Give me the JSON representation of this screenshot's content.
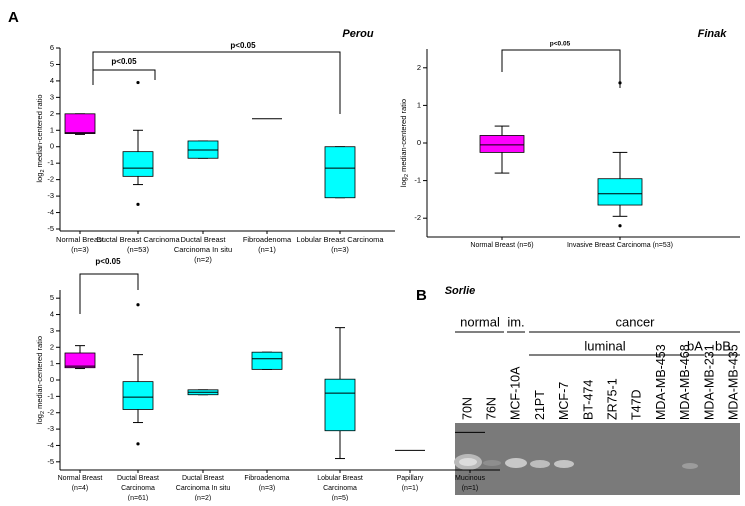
{
  "chart_data": [
    {
      "type": "box",
      "title": "Perou",
      "ylabel": {
        "base": "log",
        "sub": "2",
        "rest": " median-centered ratio"
      },
      "categories": [
        [
          "Normal Breast",
          "(n=3)"
        ],
        [
          "Ductal Breast Carcinoma",
          "(n=53)"
        ],
        [
          "Ductal Breast",
          "Carcinoma In situ",
          "(n=2)"
        ],
        [
          "Fibroadenoma",
          "(n=1)"
        ],
        [
          "Lobular Breast Carcinoma",
          "(n=3)"
        ]
      ],
      "colors": [
        "#ff00ff",
        "#00ffff",
        "#00ffff",
        "#00ffff",
        "#00ffff"
      ],
      "whisker_low": [
        0.75,
        -2.3,
        -0.7,
        null,
        -3.1
      ],
      "q1": [
        0.8,
        -1.8,
        -0.7,
        null,
        -3.1
      ],
      "median": [
        0.85,
        -1.3,
        -0.2,
        1.7,
        -1.3
      ],
      "q3": [
        2.0,
        -0.3,
        0.35,
        null,
        0.0
      ],
      "whisker_high": [
        2.0,
        1.0,
        0.35,
        null,
        0.0
      ],
      "outliers": [
        [],
        [
          3.9,
          -3.5
        ],
        [],
        [],
        []
      ],
      "ylim": [
        -5,
        6
      ],
      "yticks": [
        -5,
        -4,
        -3,
        -2,
        -1,
        0,
        1,
        2,
        3,
        4,
        5,
        6
      ],
      "annotations": [
        "p<0.05",
        "p<0.05"
      ]
    },
    {
      "type": "box",
      "title": "Finak",
      "ylabel": {
        "base": "log",
        "sub": "2",
        "rest": " median-centered ratio"
      },
      "categories": [
        [
          "Normal Breast (n=6)"
        ],
        [
          "Invasive Breast Carcinoma (n=53)"
        ]
      ],
      "colors": [
        "#ff00ff",
        "#00ffff"
      ],
      "whisker_low": [
        -0.8,
        -1.95
      ],
      "q1": [
        -0.25,
        -1.65
      ],
      "median": [
        -0.05,
        -1.35
      ],
      "q3": [
        0.2,
        -0.95
      ],
      "whisker_high": [
        0.45,
        -0.25
      ],
      "outliers": [
        [],
        [
          1.6,
          -2.2
        ]
      ],
      "ylim": [
        -2.5,
        2.5
      ],
      "yticks": [
        -2,
        -1,
        0,
        1,
        2
      ],
      "annotations": [
        "p<0.05"
      ]
    },
    {
      "type": "box",
      "title": "Sorlie",
      "ylabel": {
        "base": "log",
        "sub": "2",
        "rest": " median-centered ratio"
      },
      "categories": [
        [
          "Normal Breast",
          "(n=4)"
        ],
        [
          "Ductal Breast",
          "Carcinoma",
          "(n=61)"
        ],
        [
          "Ductal Breast",
          "Carcinoma In situ",
          "(n=2)"
        ],
        [
          "Fibroadenoma",
          "(n=3)"
        ],
        [
          "Lobular Breast",
          "Carcinoma",
          "(n=5)"
        ],
        [
          "Papillary",
          "(n=1)"
        ],
        [
          "Mucinous",
          "(n=1)"
        ]
      ],
      "colors": [
        "#ff00ff",
        "#00ffff",
        "#00ffff",
        "#00ffff",
        "#00ffff",
        "#00ffff",
        "#00ffff"
      ],
      "whisker_low": [
        0.7,
        -2.6,
        -0.9,
        0.65,
        -4.8,
        null,
        null
      ],
      "q1": [
        0.75,
        -1.8,
        -0.9,
        0.65,
        -3.1,
        null,
        null
      ],
      "median": [
        0.85,
        -1.05,
        -0.75,
        1.3,
        -0.8,
        -4.3,
        -3.2
      ],
      "q3": [
        1.65,
        -0.1,
        -0.6,
        1.7,
        0.05,
        null,
        null
      ],
      "whisker_high": [
        2.1,
        1.55,
        -0.6,
        1.7,
        3.2,
        null,
        null
      ],
      "outliers": [
        [],
        [
          4.6,
          -3.9
        ],
        [],
        [],
        [],
        [],
        []
      ],
      "ylim": [
        -5.5,
        5.5
      ],
      "yticks": [
        -5,
        -4,
        -3,
        -2,
        -1,
        0,
        1,
        2,
        3,
        4,
        5
      ],
      "annotations": [
        "p<0.05"
      ]
    }
  ],
  "panels": {
    "a": "A",
    "b": "B"
  },
  "gel": {
    "groups": [
      "normal",
      "im.",
      "cancer",
      "luminal",
      "bA",
      "bB"
    ],
    "lanes": [
      "70N",
      "76N",
      "MCF-10A",
      "21PT",
      "MCF-7",
      "BT-474",
      "ZR75-1",
      "T47D",
      "MDA-MB-453",
      "MDA-MB-468",
      "MDA-MB-231",
      "MDA-MB-435"
    ]
  }
}
